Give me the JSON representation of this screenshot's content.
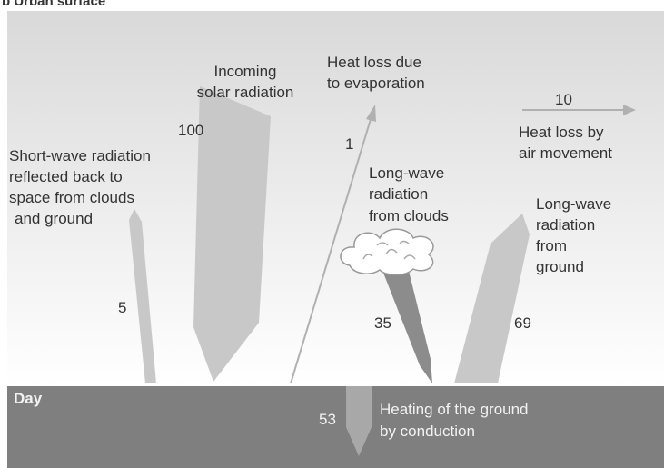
{
  "title": "b Urban surface",
  "ground_label": "Day",
  "flows": {
    "incoming_solar": {
      "label": [
        "Incoming",
        "solar radiation"
      ],
      "value": "100"
    },
    "evaporation": {
      "label": [
        "Heat loss due",
        "to evaporation"
      ],
      "value": "1"
    },
    "air_movement": {
      "label": [
        "Heat loss by",
        "air movement"
      ],
      "value": "10"
    },
    "short_wave_reflected": {
      "label": [
        "Short-wave radiation",
        "reflected back to",
        "space from clouds",
        "and ground"
      ],
      "value": "5"
    },
    "long_wave_clouds": {
      "label": [
        "Long-wave",
        "radiation",
        "from clouds"
      ],
      "value": "35"
    },
    "long_wave_ground": {
      "label": [
        "Long-wave",
        "radiation",
        "from",
        "ground"
      ],
      "value": "69"
    },
    "conduction": {
      "label": [
        "Heating of the ground",
        "by conduction"
      ],
      "value": "53"
    }
  }
}
